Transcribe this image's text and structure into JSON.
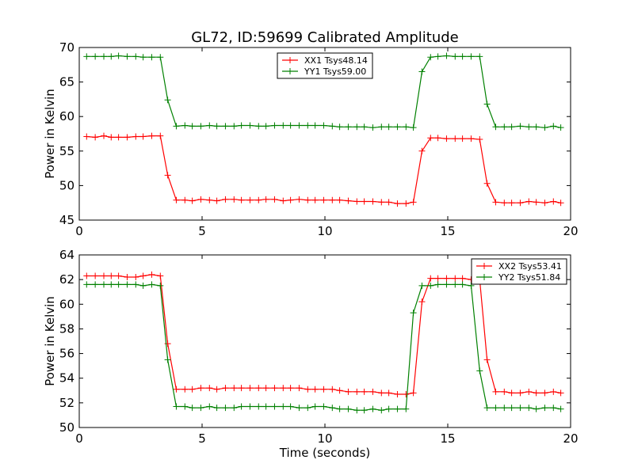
{
  "chart_data": [
    {
      "type": "line",
      "title": "GL72, ID:59699 Calibrated Amplitude",
      "xlabel": "",
      "ylabel": "Power in Kelvin",
      "xlim": [
        0,
        20
      ],
      "ylim": [
        45,
        70
      ],
      "xticks": [
        0,
        5,
        10,
        15,
        20
      ],
      "yticks": [
        45,
        50,
        55,
        60,
        65,
        70
      ],
      "grid": false,
      "legend_position": "top-center",
      "x": [
        0.3,
        0.65,
        1.0,
        1.3,
        1.6,
        1.95,
        2.3,
        2.6,
        2.95,
        3.3,
        3.6,
        3.95,
        4.3,
        4.6,
        4.95,
        5.3,
        5.6,
        5.95,
        6.3,
        6.6,
        6.95,
        7.3,
        7.6,
        7.95,
        8.3,
        8.6,
        8.95,
        9.3,
        9.6,
        9.95,
        10.3,
        10.6,
        10.95,
        11.3,
        11.6,
        11.95,
        12.3,
        12.6,
        12.95,
        13.3,
        13.6,
        13.95,
        14.3,
        14.6,
        14.95,
        15.3,
        15.6,
        15.95,
        16.3,
        16.6,
        16.95,
        17.3,
        17.6,
        17.95,
        18.3,
        18.6,
        18.95,
        19.3,
        19.6
      ],
      "series": [
        {
          "name": "XX1 Tsys48.14",
          "color": "#ff0000",
          "values": [
            57.1,
            57.0,
            57.2,
            57.0,
            57.0,
            57.0,
            57.1,
            57.1,
            57.2,
            57.2,
            51.5,
            47.9,
            47.9,
            47.8,
            48.0,
            47.9,
            47.8,
            48.0,
            48.0,
            47.9,
            47.9,
            47.9,
            48.0,
            48.0,
            47.8,
            47.9,
            48.0,
            47.9,
            47.9,
            47.9,
            47.9,
            47.9,
            47.8,
            47.7,
            47.7,
            47.7,
            47.6,
            47.6,
            47.4,
            47.4,
            47.6,
            55.0,
            56.9,
            56.9,
            56.8,
            56.8,
            56.8,
            56.8,
            56.7,
            50.3,
            47.6,
            47.5,
            47.5,
            47.5,
            47.7,
            47.6,
            47.5,
            47.7,
            47.5
          ]
        },
        {
          "name": "YY1 Tsys59.00",
          "color": "#008000",
          "values": [
            68.7,
            68.7,
            68.7,
            68.7,
            68.8,
            68.7,
            68.7,
            68.6,
            68.6,
            68.6,
            62.4,
            58.6,
            58.7,
            58.6,
            58.6,
            58.7,
            58.6,
            58.6,
            58.6,
            58.7,
            58.7,
            58.6,
            58.6,
            58.7,
            58.7,
            58.7,
            58.7,
            58.7,
            58.7,
            58.7,
            58.6,
            58.5,
            58.5,
            58.5,
            58.5,
            58.4,
            58.5,
            58.5,
            58.5,
            58.5,
            58.4,
            66.5,
            68.6,
            68.7,
            68.8,
            68.7,
            68.7,
            68.7,
            68.7,
            61.8,
            58.5,
            58.5,
            58.5,
            58.6,
            58.5,
            58.5,
            58.4,
            58.6,
            58.4
          ]
        }
      ]
    },
    {
      "type": "line",
      "title": "",
      "xlabel": "Time (seconds)",
      "ylabel": "Power in Kelvin",
      "xlim": [
        0,
        20
      ],
      "ylim": [
        50,
        64
      ],
      "xticks": [
        0,
        5,
        10,
        15,
        20
      ],
      "yticks": [
        50,
        52,
        54,
        56,
        58,
        60,
        62,
        64
      ],
      "grid": false,
      "legend_position": "top-right",
      "x": [
        0.3,
        0.65,
        1.0,
        1.3,
        1.6,
        1.95,
        2.3,
        2.6,
        2.95,
        3.3,
        3.6,
        3.95,
        4.3,
        4.6,
        4.95,
        5.3,
        5.6,
        5.95,
        6.3,
        6.6,
        6.95,
        7.3,
        7.6,
        7.95,
        8.3,
        8.6,
        8.95,
        9.3,
        9.6,
        9.95,
        10.3,
        10.6,
        10.95,
        11.3,
        11.6,
        11.95,
        12.3,
        12.6,
        12.95,
        13.3,
        13.6,
        13.95,
        14.3,
        14.6,
        14.95,
        15.3,
        15.6,
        15.95,
        16.3,
        16.6,
        16.95,
        17.3,
        17.6,
        17.95,
        18.3,
        18.6,
        18.95,
        19.3,
        19.6
      ],
      "series": [
        {
          "name": "XX2 Tsys53.41",
          "color": "#ff0000",
          "values": [
            62.3,
            62.3,
            62.3,
            62.3,
            62.3,
            62.2,
            62.2,
            62.3,
            62.4,
            62.3,
            56.8,
            53.1,
            53.1,
            53.1,
            53.2,
            53.2,
            53.1,
            53.2,
            53.2,
            53.2,
            53.2,
            53.2,
            53.2,
            53.2,
            53.2,
            53.2,
            53.2,
            53.1,
            53.1,
            53.1,
            53.1,
            53.0,
            52.9,
            52.9,
            52.9,
            52.9,
            52.8,
            52.8,
            52.7,
            52.7,
            52.8,
            60.2,
            62.1,
            62.1,
            62.1,
            62.1,
            62.1,
            62.0,
            62.0,
            55.5,
            52.9,
            52.9,
            52.8,
            52.8,
            52.9,
            52.8,
            52.8,
            52.9,
            52.8
          ]
        },
        {
          "name": "YY2 Tsys51.84",
          "color": "#008000",
          "values": [
            61.6,
            61.6,
            61.6,
            61.6,
            61.6,
            61.6,
            61.6,
            61.5,
            61.6,
            61.5,
            55.5,
            51.7,
            51.7,
            51.6,
            51.6,
            51.7,
            51.6,
            51.6,
            51.6,
            51.7,
            51.7,
            51.7,
            51.7,
            51.7,
            51.7,
            51.7,
            51.6,
            51.6,
            51.7,
            51.7,
            51.6,
            51.5,
            51.5,
            51.4,
            51.4,
            51.5,
            51.4,
            51.5,
            51.5,
            51.5,
            59.3,
            61.5,
            61.5,
            61.6,
            61.6,
            61.6,
            61.6,
            61.5,
            54.6,
            51.6,
            51.6,
            51.6,
            51.6,
            51.6,
            51.6,
            51.5,
            51.6,
            51.6,
            51.5
          ]
        }
      ]
    }
  ]
}
